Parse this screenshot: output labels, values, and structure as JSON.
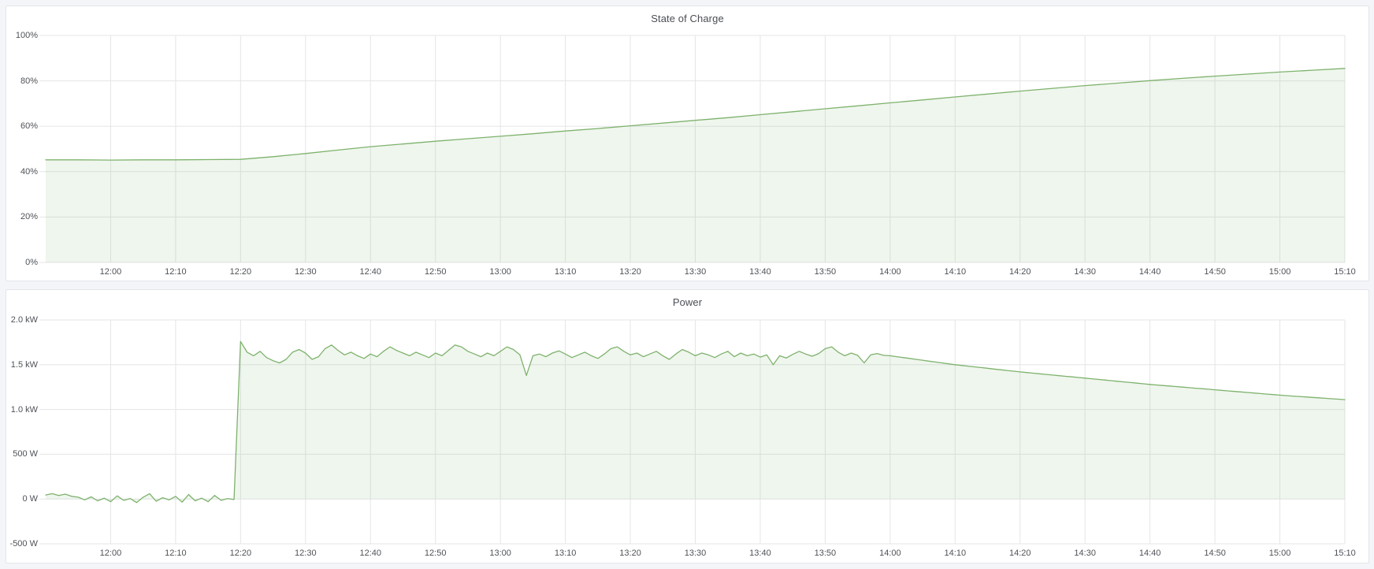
{
  "page": {
    "background_color": "#f4f5f9",
    "panel_background": "#ffffff",
    "panel_border_color": "#e3e5e9",
    "axis_label_color": "#4e5257",
    "title_color": "#4a4e55"
  },
  "chart_data": [
    {
      "type": "area",
      "title": "State of Charge",
      "legend": "none",
      "grid": true,
      "x_domain_minutes": [
        0,
        200
      ],
      "x_domain_time": [
        "11:50",
        "15:10"
      ],
      "x_tick_minutes": [
        10,
        20,
        30,
        40,
        50,
        60,
        70,
        80,
        90,
        100,
        110,
        120,
        130,
        140,
        150,
        160,
        170,
        180,
        190,
        200
      ],
      "x_tick_labels": [
        "12:00",
        "12:10",
        "12:20",
        "12:30",
        "12:40",
        "12:50",
        "13:00",
        "13:10",
        "13:20",
        "13:30",
        "13:40",
        "13:50",
        "14:00",
        "14:10",
        "14:20",
        "14:30",
        "14:40",
        "14:50",
        "15:00",
        "15:10"
      ],
      "ylim": [
        0,
        100
      ],
      "y_tick_values": [
        0,
        20,
        40,
        60,
        80,
        100
      ],
      "y_tick_labels": [
        "0%",
        "20%",
        "40%",
        "60%",
        "80%",
        "100%"
      ],
      "line_color": "#7eb26d",
      "fill_color": "rgba(126,178,109,0.12)",
      "grid_color": "#e4e5e7",
      "fill_to_value": 0,
      "series": [
        {
          "name": "State of Charge",
          "unit": "percent",
          "t_minutes_start": 0,
          "t_minutes_step": 5,
          "values": [
            45.2,
            45.2,
            45.1,
            45.2,
            45.2,
            45.3,
            45.4,
            46.6,
            48,
            49.5,
            51,
            52.2,
            53.4,
            54.5,
            55.6,
            56.7,
            57.9,
            59,
            60.2,
            61.4,
            62.6,
            63.8,
            65.1,
            66.4,
            67.7,
            69,
            70.3,
            71.6,
            72.9,
            74.2,
            75.5,
            76.7,
            77.9,
            79,
            80.1,
            81.1,
            82.1,
            83,
            83.9,
            84.7,
            85.5
          ]
        }
      ]
    },
    {
      "type": "area",
      "title": "Power",
      "legend": "none",
      "grid": true,
      "x_domain_minutes": [
        0,
        200
      ],
      "x_domain_time": [
        "11:50",
        "15:10"
      ],
      "x_tick_minutes": [
        10,
        20,
        30,
        40,
        50,
        60,
        70,
        80,
        90,
        100,
        110,
        120,
        130,
        140,
        150,
        160,
        170,
        180,
        190,
        200
      ],
      "x_tick_labels": [
        "12:00",
        "12:10",
        "12:20",
        "12:30",
        "12:40",
        "12:50",
        "13:00",
        "13:10",
        "13:20",
        "13:30",
        "13:40",
        "13:50",
        "14:00",
        "14:10",
        "14:20",
        "14:30",
        "14:40",
        "14:50",
        "15:00",
        "15:10"
      ],
      "ylim": [
        -500,
        2000
      ],
      "y_tick_values": [
        -500,
        0,
        500,
        1000,
        1500,
        2000
      ],
      "y_tick_labels": [
        "-500 W",
        "0 W",
        "500 W",
        "1.0 kW",
        "1.5 kW",
        "2.0 kW"
      ],
      "line_color": "#7eb26d",
      "fill_color": "rgba(126,178,109,0.12)",
      "grid_color": "#e4e5e7",
      "fill_to_value": 0,
      "series": [
        {
          "name": "Power",
          "unit": "watts",
          "t_minutes_start": 0,
          "t_minutes_step": 1,
          "values": [
            45,
            60,
            40,
            55,
            30,
            20,
            -10,
            25,
            -20,
            10,
            -30,
            35,
            -15,
            5,
            -40,
            20,
            60,
            -25,
            15,
            -10,
            30,
            -35,
            50,
            -20,
            10,
            -30,
            40,
            -15,
            5,
            -5,
            1760,
            1640,
            1600,
            1650,
            1580,
            1545,
            1520,
            1560,
            1640,
            1670,
            1630,
            1560,
            1590,
            1680,
            1720,
            1660,
            1610,
            1640,
            1600,
            1570,
            1620,
            1590,
            1650,
            1700,
            1660,
            1630,
            1600,
            1640,
            1610,
            1580,
            1630,
            1600,
            1660,
            1720,
            1700,
            1650,
            1620,
            1590,
            1630,
            1600,
            1650,
            1700,
            1670,
            1610,
            1380,
            1600,
            1620,
            1590,
            1630,
            1655,
            1620,
            1580,
            1610,
            1640,
            1600,
            1570,
            1620,
            1680,
            1700,
            1650,
            1610,
            1630,
            1590,
            1620,
            1650,
            1600,
            1560,
            1620,
            1670,
            1640,
            1600,
            1630,
            1610,
            1580,
            1620,
            1650,
            1590,
            1630,
            1600,
            1620,
            1585,
            1610,
            1500,
            1600,
            1575,
            1615,
            1650,
            1620,
            1595,
            1625,
            1680,
            1700,
            1640,
            1600,
            1630,
            1605,
            1520,
            1610,
            1625,
            1605,
            1600,
            1590,
            1580,
            1570,
            1560,
            1550,
            1540,
            1530,
            1520,
            1510,
            1500,
            1492,
            1484,
            1476,
            1468,
            1460,
            1452,
            1444,
            1436,
            1428,
            1420,
            1413,
            1406,
            1399,
            1392,
            1385,
            1378,
            1371,
            1364,
            1357,
            1350,
            1343,
            1336,
            1329,
            1322,
            1315,
            1308,
            1301,
            1294,
            1287,
            1280,
            1274,
            1268,
            1262,
            1256,
            1250,
            1244,
            1238,
            1232,
            1226,
            1220,
            1214,
            1208,
            1202,
            1196,
            1190,
            1184,
            1178,
            1172,
            1166,
            1160,
            1155,
            1150,
            1145,
            1140,
            1135,
            1130,
            1125,
            1120,
            1115,
            1110
          ]
        }
      ]
    }
  ]
}
